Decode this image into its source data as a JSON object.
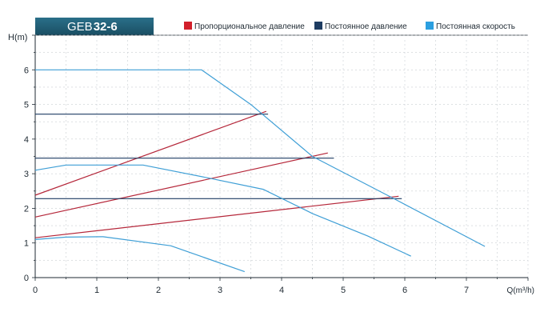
{
  "chart_data": {
    "type": "line",
    "title": {
      "prefix": "GEB",
      "model": "32-6"
    },
    "ylabel": "H(m)",
    "xlabel": "Q(m³/h)",
    "xlim": [
      0,
      8
    ],
    "ylim": [
      0,
      7
    ],
    "x_ticks": [
      0,
      1,
      2,
      3,
      4,
      5,
      6,
      7
    ],
    "y_ticks": [
      0,
      1,
      2,
      3,
      4,
      5,
      6
    ],
    "grid": true,
    "legend_position": "top",
    "legend": [
      {
        "label": "Пропорциональное давление",
        "color": "#d21f2b"
      },
      {
        "label": "Постоянное давление",
        "color": "#1e3c62"
      },
      {
        "label": "Постоянная скорость",
        "color": "#2b9fe0"
      }
    ],
    "series": [
      {
        "kind": "proportional",
        "color": "#b5273a",
        "points": [
          [
            0,
            2.38
          ],
          [
            3.75,
            4.8
          ]
        ]
      },
      {
        "kind": "proportional",
        "color": "#b5273a",
        "points": [
          [
            0,
            1.75
          ],
          [
            4.75,
            3.6
          ]
        ]
      },
      {
        "kind": "proportional",
        "color": "#b5273a",
        "points": [
          [
            0,
            1.15
          ],
          [
            5.9,
            2.35
          ]
        ]
      },
      {
        "kind": "constant-pressure",
        "color": "#1e3c62",
        "points": [
          [
            0,
            4.72
          ],
          [
            3.78,
            4.72
          ]
        ]
      },
      {
        "kind": "constant-pressure",
        "color": "#1e3c62",
        "points": [
          [
            0,
            3.45
          ],
          [
            4.85,
            3.45
          ]
        ]
      },
      {
        "kind": "constant-pressure",
        "color": "#1e3c62",
        "points": [
          [
            0,
            2.28
          ],
          [
            5.95,
            2.28
          ]
        ]
      },
      {
        "kind": "constant-speed",
        "color": "#3f9fd6",
        "points": [
          [
            0,
            6.0
          ],
          [
            2.7,
            6.0
          ],
          [
            3.5,
            5.0
          ],
          [
            4.5,
            3.5
          ],
          [
            5.8,
            2.3
          ],
          [
            7.3,
            0.9
          ]
        ]
      },
      {
        "kind": "constant-speed",
        "color": "#3f9fd6",
        "points": [
          [
            0,
            3.1
          ],
          [
            0.5,
            3.25
          ],
          [
            1.75,
            3.25
          ],
          [
            2.8,
            2.88
          ],
          [
            3.7,
            2.55
          ],
          [
            4.5,
            1.85
          ],
          [
            5.4,
            1.2
          ],
          [
            6.1,
            0.62
          ]
        ]
      },
      {
        "kind": "constant-speed",
        "color": "#3f9fd6",
        "points": [
          [
            0,
            1.1
          ],
          [
            0.5,
            1.17
          ],
          [
            1.1,
            1.18
          ],
          [
            2.2,
            0.92
          ],
          [
            3.4,
            0.17
          ]
        ]
      }
    ],
    "colors": {
      "title_bg": "#1f5c72",
      "axis": "#1f2a33",
      "grid": "#c9ced2"
    }
  }
}
